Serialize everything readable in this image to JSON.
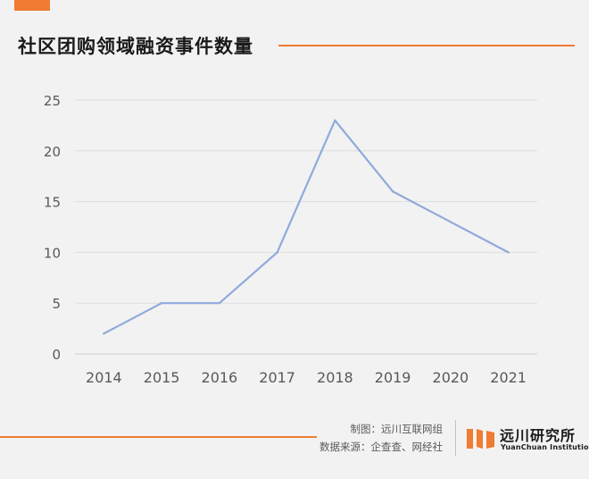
{
  "header": {
    "title": "社区团购领域融资事件数量",
    "accent_color": "#f07b32"
  },
  "chart_data": {
    "type": "line",
    "title": "社区团购领域融资事件数量",
    "xlabel": "",
    "ylabel": "",
    "categories": [
      "2014",
      "2015",
      "2016",
      "2017",
      "2018",
      "2019",
      "2020",
      "2021"
    ],
    "series": [
      {
        "values": [
          2,
          5,
          5,
          10,
          23,
          16,
          13,
          10
        ],
        "color": "#8faadc"
      }
    ],
    "ylim": [
      0,
      25
    ],
    "yticks": [
      0,
      5,
      10,
      15,
      20,
      25
    ],
    "grid": true,
    "legend": "none"
  },
  "footer": {
    "made_by": "制图：远川互联网组",
    "source": "数据来源：企查查、网经社",
    "logo_name": "远川研究所",
    "logo_en": "YuanChuan Institution",
    "logo_color": "#f07b32"
  }
}
